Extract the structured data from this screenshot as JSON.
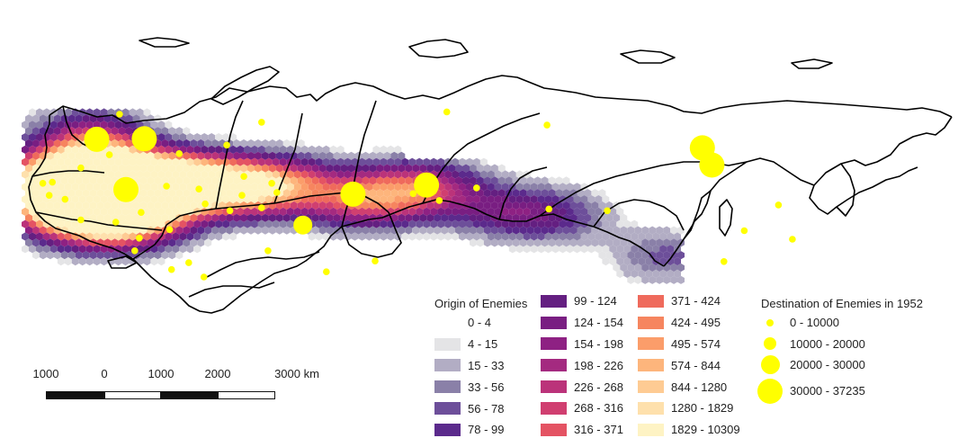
{
  "colors": {
    "destination": "#ffff00",
    "country_border": "#000000",
    "land_fill": "#ffffff"
  },
  "legend_origin": {
    "title": "Origin of Enemies",
    "classes": [
      {
        "label": "0 - 4",
        "color": "#ffffff"
      },
      {
        "label": "4 - 15",
        "color": "#e4e4e6"
      },
      {
        "label": "15 - 33",
        "color": "#b2adc4"
      },
      {
        "label": "33 - 56",
        "color": "#8a80a8"
      },
      {
        "label": "56 - 78",
        "color": "#6d4f9a"
      },
      {
        "label": "78 - 99",
        "color": "#5b2a8c"
      },
      {
        "label": "99 - 124",
        "color": "#641f81"
      },
      {
        "label": "124 - 154",
        "color": "#791e82"
      },
      {
        "label": "154 - 198",
        "color": "#8e2183"
      },
      {
        "label": "198 - 226",
        "color": "#a42a80"
      },
      {
        "label": "226 - 268",
        "color": "#bb337a"
      },
      {
        "label": "268 - 316",
        "color": "#d03f70"
      },
      {
        "label": "316 - 371",
        "color": "#e45363"
      },
      {
        "label": "371 - 424",
        "color": "#ef6a5c"
      },
      {
        "label": "424 - 495",
        "color": "#f6855f"
      },
      {
        "label": "495 - 574",
        "color": "#fb9d6a"
      },
      {
        "label": "574 - 844",
        "color": "#fdb57c"
      },
      {
        "label": "844 - 1280",
        "color": "#fecb93"
      },
      {
        "label": "1280 - 1829",
        "color": "#fee0ac"
      },
      {
        "label": "1829 - 10309",
        "color": "#fef3c4"
      }
    ]
  },
  "legend_destination": {
    "title": "Destination of Enemies in 1952",
    "classes": [
      {
        "label": "0 - 10000",
        "level": 1
      },
      {
        "label": "10000 - 20000",
        "level": 2
      },
      {
        "label": "20000 - 30000",
        "level": 3
      },
      {
        "label": "30000 - 37235",
        "level": 4
      }
    ]
  },
  "scale_bar": {
    "labels": [
      "1000",
      "0",
      "1000",
      "2000",
      "3000 km"
    ]
  },
  "destinations": [
    {
      "lon": 30.5,
      "lat": 59.5,
      "level": 1
    },
    {
      "lon": 37.6,
      "lat": 55.7,
      "level": 4
    },
    {
      "lon": 33.0,
      "lat": 64.5,
      "level": 4
    },
    {
      "lon": 40.5,
      "lat": 64.6,
      "level": 4
    },
    {
      "lon": 59.0,
      "lat": 67.5,
      "level": 1
    },
    {
      "lon": 73.4,
      "lat": 54.9,
      "level": 4
    },
    {
      "lon": 65.5,
      "lat": 49.5,
      "level": 3
    },
    {
      "lon": 85.0,
      "lat": 56.5,
      "level": 4
    },
    {
      "lon": 128.5,
      "lat": 63.0,
      "level": 4
    },
    {
      "lon": 130.0,
      "lat": 60.0,
      "level": 4
    },
    {
      "lon": 26.0,
      "lat": 57.0,
      "level": 1
    },
    {
      "lon": 28.0,
      "lat": 54.0,
      "level": 1
    },
    {
      "lon": 24.5,
      "lat": 56.8,
      "level": 1
    },
    {
      "lon": 25.5,
      "lat": 54.7,
      "level": 1
    },
    {
      "lon": 30.5,
      "lat": 50.4,
      "level": 1
    },
    {
      "lon": 36.0,
      "lat": 50.0,
      "level": 1
    },
    {
      "lon": 39.7,
      "lat": 47.2,
      "level": 1
    },
    {
      "lon": 44.5,
      "lat": 48.7,
      "level": 1
    },
    {
      "lon": 49.1,
      "lat": 55.8,
      "level": 1
    },
    {
      "lon": 50.1,
      "lat": 53.2,
      "level": 1
    },
    {
      "lon": 56.2,
      "lat": 58.0,
      "level": 1
    },
    {
      "lon": 60.6,
      "lat": 56.8,
      "level": 1
    },
    {
      "lon": 61.4,
      "lat": 55.2,
      "level": 1
    },
    {
      "lon": 44.0,
      "lat": 56.3,
      "level": 1
    },
    {
      "lon": 39.0,
      "lat": 45.0,
      "level": 1
    },
    {
      "lon": 44.8,
      "lat": 41.7,
      "level": 1
    },
    {
      "lon": 49.9,
      "lat": 40.4,
      "level": 1
    },
    {
      "lon": 69.2,
      "lat": 41.3,
      "level": 1
    },
    {
      "lon": 76.9,
      "lat": 43.2,
      "level": 1
    },
    {
      "lon": 82.9,
      "lat": 55.0,
      "level": 1
    },
    {
      "lon": 92.9,
      "lat": 56.0,
      "level": 1
    },
    {
      "lon": 104.3,
      "lat": 52.3,
      "level": 1
    },
    {
      "lon": 113.5,
      "lat": 52.0,
      "level": 1
    },
    {
      "lon": 135.1,
      "lat": 48.5,
      "level": 1
    },
    {
      "lon": 131.9,
      "lat": 43.1,
      "level": 1
    },
    {
      "lon": 142.7,
      "lat": 47.0,
      "level": 1
    },
    {
      "lon": 140.5,
      "lat": 53.0,
      "level": 1
    },
    {
      "lon": 104.0,
      "lat": 67.0,
      "level": 1
    },
    {
      "lon": 88.2,
      "lat": 69.3,
      "level": 1
    },
    {
      "lon": 46.0,
      "lat": 62.0,
      "level": 1
    },
    {
      "lon": 53.5,
      "lat": 63.5,
      "level": 1
    },
    {
      "lon": 86.1,
      "lat": 55.4,
      "level": 1
    },
    {
      "lon": 87.0,
      "lat": 53.8,
      "level": 1
    },
    {
      "lon": 54.0,
      "lat": 52.0,
      "level": 1
    },
    {
      "lon": 55.9,
      "lat": 54.7,
      "level": 1
    },
    {
      "lon": 47.5,
      "lat": 42.9,
      "level": 1
    },
    {
      "lon": 60.0,
      "lat": 45.0,
      "level": 1
    },
    {
      "lon": 59.0,
      "lat": 52.5,
      "level": 1
    },
    {
      "lon": 37.6,
      "lat": 54.2,
      "level": 1
    },
    {
      "lon": 40.0,
      "lat": 51.7,
      "level": 1
    },
    {
      "lon": 35.0,
      "lat": 61.8,
      "level": 1
    },
    {
      "lon": 36.6,
      "lat": 68.9,
      "level": 1
    }
  ],
  "region_labels": []
}
